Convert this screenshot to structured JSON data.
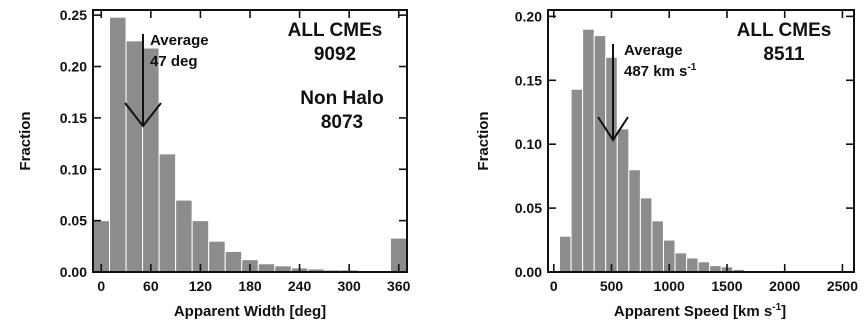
{
  "chart_data": [
    {
      "type": "bar",
      "xlabel": "Apparent Width [deg]",
      "ylabel": "Fraction",
      "xlim": [
        -10,
        370
      ],
      "ylim": [
        0,
        0.255
      ],
      "xticks": [
        0,
        60,
        120,
        180,
        240,
        300,
        360
      ],
      "xtick_labels": [
        "0",
        "60",
        "120",
        "180",
        "240",
        "300",
        "360"
      ],
      "yticks": [
        0,
        0.05,
        0.1,
        0.15,
        0.2,
        0.25
      ],
      "ytick_labels": [
        "0.00",
        "0.05",
        "0.10",
        "0.15",
        "0.20",
        "0.25"
      ],
      "bar_width": 20,
      "x": [
        0,
        20,
        40,
        60,
        80,
        100,
        120,
        140,
        160,
        180,
        200,
        220,
        240,
        260,
        280,
        300,
        320,
        340,
        360
      ],
      "values": [
        0.05,
        0.248,
        0.225,
        0.218,
        0.115,
        0.07,
        0.05,
        0.03,
        0.02,
        0.012,
        0.008,
        0.006,
        0.004,
        0.003,
        0.002,
        0.002,
        0.001,
        0.001,
        0.033
      ],
      "annotations": {
        "average_label": "Average",
        "average_value": "47 deg",
        "average_x": 47,
        "all_label": "ALL CMEs",
        "all_count": "9092",
        "nonhalo_label": "Non Halo",
        "nonhalo_count": "8073"
      },
      "grid": false,
      "colors": {
        "bar": "#8c8c8c",
        "axis": "#111111"
      }
    },
    {
      "type": "bar",
      "xlabel": "Apparent Speed [km s",
      "xlabel_sup": "-1",
      "xlabel_end": "]",
      "ylabel": "Fraction",
      "xlim": [
        -50,
        2600
      ],
      "ylim": [
        0,
        0.205
      ],
      "xticks": [
        0,
        500,
        1000,
        1500,
        2000,
        2500
      ],
      "xtick_labels": [
        "0",
        "500",
        "1000",
        "1500",
        "2000",
        "2500"
      ],
      "yticks": [
        0,
        0.05,
        0.1,
        0.15,
        0.2
      ],
      "ytick_labels": [
        "0.00",
        "0.05",
        "0.10",
        "0.15",
        "0.20"
      ],
      "bar_width": 100,
      "x": [
        100,
        200,
        300,
        400,
        500,
        600,
        700,
        800,
        900,
        1000,
        1100,
        1200,
        1300,
        1400,
        1500,
        1600
      ],
      "values": [
        0.028,
        0.143,
        0.19,
        0.185,
        0.168,
        0.112,
        0.08,
        0.058,
        0.04,
        0.025,
        0.015,
        0.011,
        0.008,
        0.005,
        0.004,
        0.002
      ],
      "annotations": {
        "average_label": "Average",
        "average_value": "487 km s",
        "average_value_sup": "-1",
        "average_x": 487,
        "all_label": "ALL CMEs",
        "all_count": "8511"
      },
      "grid": false,
      "colors": {
        "bar": "#8c8c8c",
        "axis": "#111111"
      }
    }
  ]
}
